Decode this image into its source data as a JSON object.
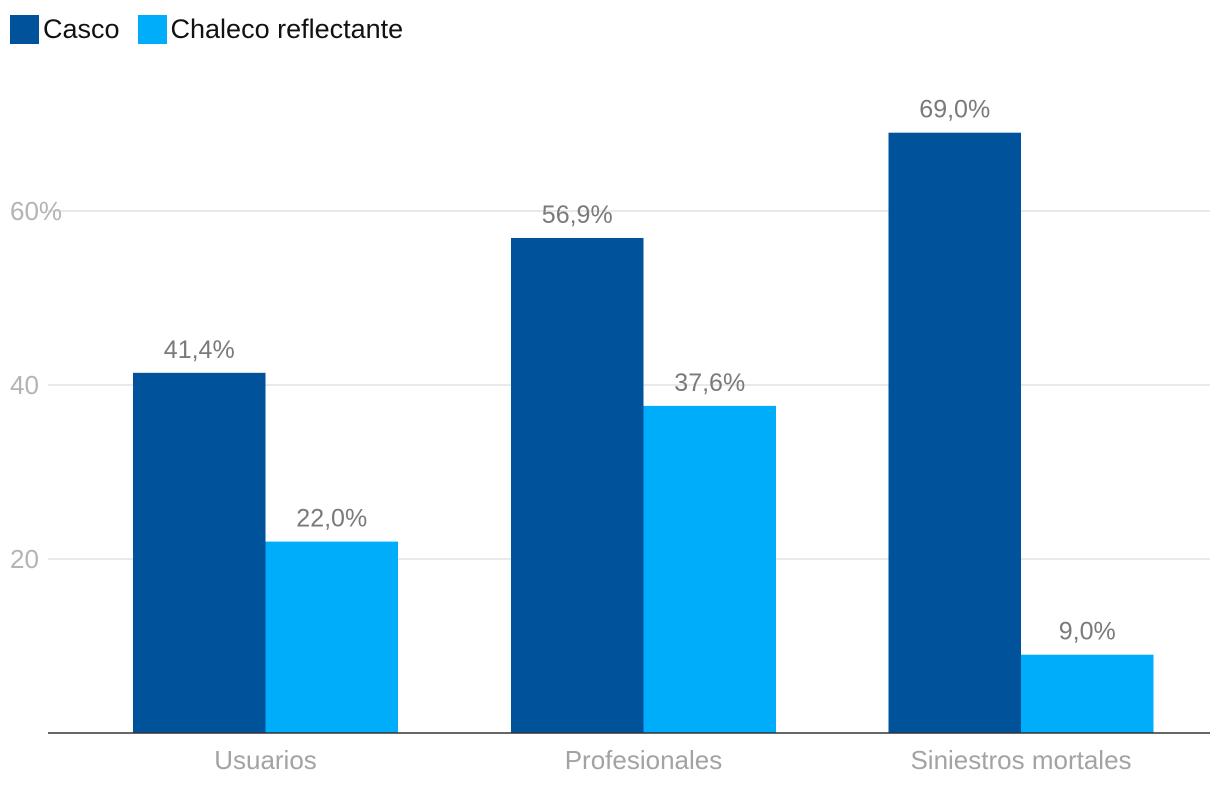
{
  "chart_data": {
    "type": "bar",
    "title": "",
    "xlabel": "",
    "ylabel": "",
    "categories": [
      "Usuarios",
      "Profesionales",
      "Siniestros mortales"
    ],
    "series": [
      {
        "name": "Casco",
        "color": "#00529b",
        "values": [
          41.4,
          56.9,
          69.0
        ],
        "labels": [
          "41,4%",
          "56,9%",
          "69,0%"
        ]
      },
      {
        "name": "Chaleco reflectante",
        "color": "#00adfa",
        "values": [
          22.0,
          37.6,
          9.0
        ],
        "labels": [
          "22,0%",
          "37,6%",
          "9,0%"
        ]
      }
    ],
    "ylim": [
      0,
      80
    ],
    "yticks": [
      {
        "value": 20,
        "label": "20"
      },
      {
        "value": 40,
        "label": "40"
      },
      {
        "value": 60,
        "label": "60%"
      }
    ],
    "grid": true,
    "legend": "top-left"
  }
}
